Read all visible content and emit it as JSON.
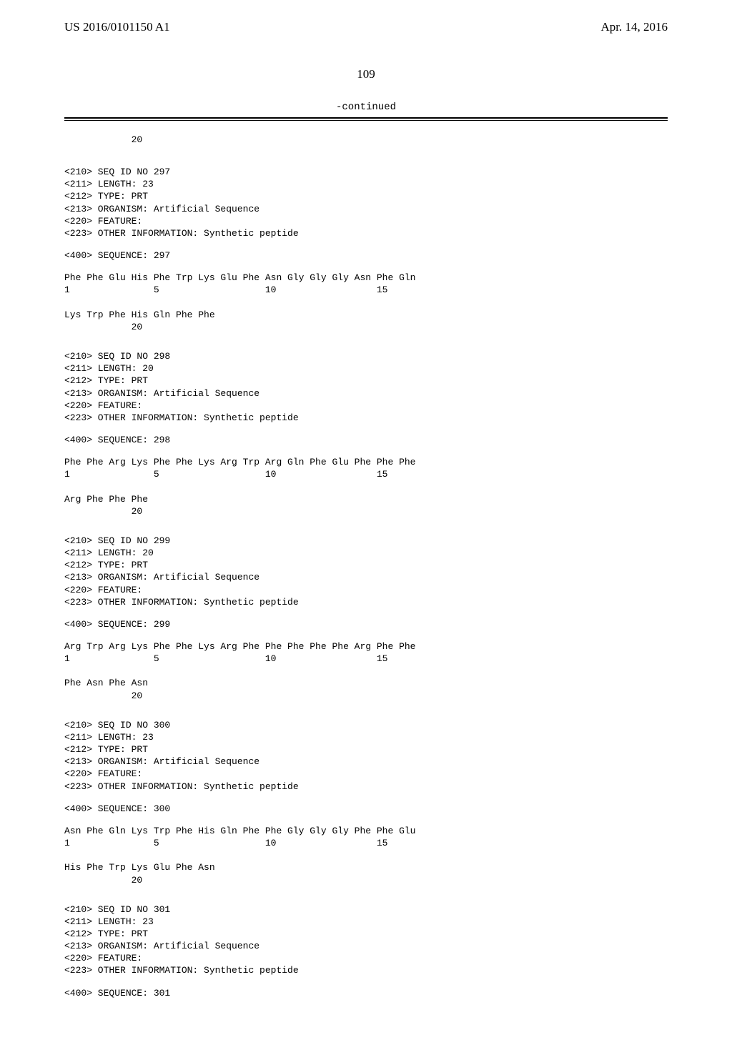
{
  "header": {
    "left": "US 2016/0101150 A1",
    "right": "Apr. 14, 2016"
  },
  "pagenum": "109",
  "continued": "-continued",
  "tail20": "            20",
  "records": [
    {
      "meta": [
        "<210> SEQ ID NO 297",
        "<211> LENGTH: 23",
        "<212> TYPE: PRT",
        "<213> ORGANISM: Artificial Sequence",
        "<220> FEATURE:",
        "<223> OTHER INFORMATION: Synthetic peptide"
      ],
      "seqheader": "<400> SEQUENCE: 297",
      "seqlines": [
        "Phe Phe Glu His Phe Trp Lys Glu Phe Asn Gly Gly Gly Asn Phe Gln",
        "1               5                   10                  15",
        "",
        "Lys Trp Phe His Gln Phe Phe",
        "            20"
      ]
    },
    {
      "meta": [
        "<210> SEQ ID NO 298",
        "<211> LENGTH: 20",
        "<212> TYPE: PRT",
        "<213> ORGANISM: Artificial Sequence",
        "<220> FEATURE:",
        "<223> OTHER INFORMATION: Synthetic peptide"
      ],
      "seqheader": "<400> SEQUENCE: 298",
      "seqlines": [
        "Phe Phe Arg Lys Phe Phe Lys Arg Trp Arg Gln Phe Glu Phe Phe Phe",
        "1               5                   10                  15",
        "",
        "Arg Phe Phe Phe",
        "            20"
      ]
    },
    {
      "meta": [
        "<210> SEQ ID NO 299",
        "<211> LENGTH: 20",
        "<212> TYPE: PRT",
        "<213> ORGANISM: Artificial Sequence",
        "<220> FEATURE:",
        "<223> OTHER INFORMATION: Synthetic peptide"
      ],
      "seqheader": "<400> SEQUENCE: 299",
      "seqlines": [
        "Arg Trp Arg Lys Phe Phe Lys Arg Phe Phe Phe Phe Phe Arg Phe Phe",
        "1               5                   10                  15",
        "",
        "Phe Asn Phe Asn",
        "            20"
      ]
    },
    {
      "meta": [
        "<210> SEQ ID NO 300",
        "<211> LENGTH: 23",
        "<212> TYPE: PRT",
        "<213> ORGANISM: Artificial Sequence",
        "<220> FEATURE:",
        "<223> OTHER INFORMATION: Synthetic peptide"
      ],
      "seqheader": "<400> SEQUENCE: 300",
      "seqlines": [
        "Asn Phe Gln Lys Trp Phe His Gln Phe Phe Gly Gly Gly Phe Phe Glu",
        "1               5                   10                  15",
        "",
        "His Phe Trp Lys Glu Phe Asn",
        "            20"
      ]
    },
    {
      "meta": [
        "<210> SEQ ID NO 301",
        "<211> LENGTH: 23",
        "<212> TYPE: PRT",
        "<213> ORGANISM: Artificial Sequence",
        "<220> FEATURE:",
        "<223> OTHER INFORMATION: Synthetic peptide"
      ],
      "seqheader": "<400> SEQUENCE: 301",
      "seqlines": []
    }
  ]
}
